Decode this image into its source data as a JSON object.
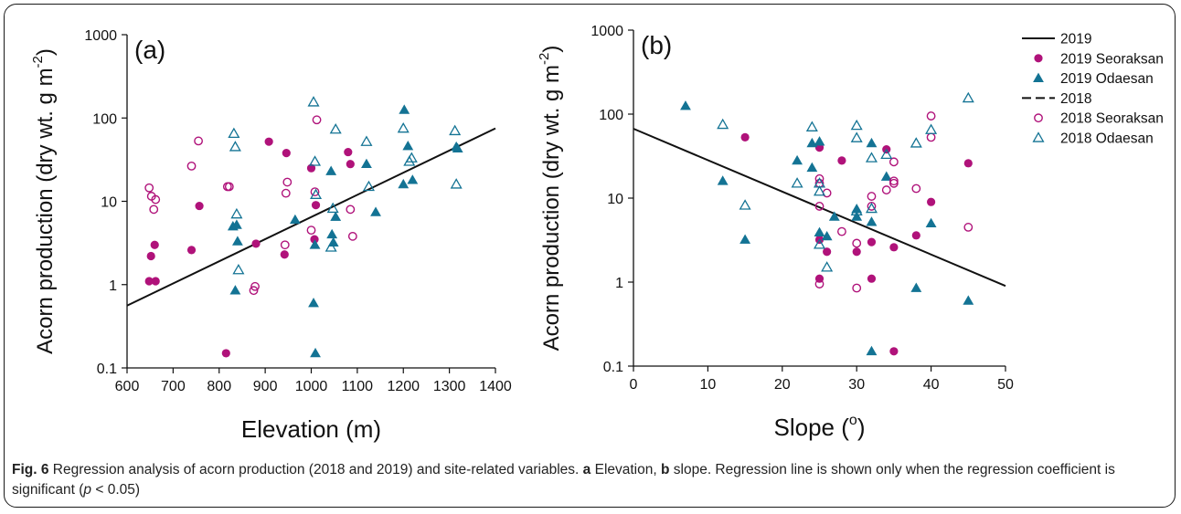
{
  "chart_data": [
    {
      "type": "scatter",
      "panel_label": "(a)",
      "xlabel": "Elevation (m)",
      "ylabel": "Acorn production (dry wt. g m",
      "ylabel_sup": "-2",
      "ylabel_end": ")",
      "xlim": [
        600,
        1400
      ],
      "ylim": [
        0.1,
        1000
      ],
      "yscale": "log",
      "xticks": [
        "600",
        "700",
        "800",
        "900",
        "1000",
        "1100",
        "1200",
        "1300",
        "1400"
      ],
      "yticks": [
        "0.1",
        "1",
        "10",
        "100",
        "1000"
      ],
      "grid": false,
      "regression_line": {
        "name": "2019",
        "x": [
          600,
          1400
        ],
        "y": [
          0.56,
          75
        ]
      },
      "series": [
        {
          "name": "2019 Seoraksan",
          "marker": "circle-filled",
          "color": "#b0127a",
          "points": [
            [
              648,
              1.1
            ],
            [
              652,
              2.2
            ],
            [
              660,
              3.0
            ],
            [
              662,
              1.1
            ],
            [
              740,
              2.6
            ],
            [
              757,
              8.8
            ],
            [
              815,
              0.15
            ],
            [
              880,
              3.1
            ],
            [
              908,
              52
            ],
            [
              942,
              2.3
            ],
            [
              946,
              38
            ],
            [
              1000,
              25
            ],
            [
              1007,
              3.5
            ],
            [
              1010,
              9
            ],
            [
              1080,
              39
            ],
            [
              1085,
              28
            ]
          ]
        },
        {
          "name": "2019 Odaesan",
          "marker": "triangle-filled",
          "color": "#137394",
          "points": [
            [
              830,
              5.0
            ],
            [
              835,
              0.85
            ],
            [
              838,
              5.2
            ],
            [
              840,
              3.3
            ],
            [
              965,
              6.0
            ],
            [
              1005,
              0.6
            ],
            [
              1008,
              3.0
            ],
            [
              1009,
              0.15
            ],
            [
              1043,
              23
            ],
            [
              1045,
              4.0
            ],
            [
              1048,
              3.2
            ],
            [
              1053,
              6.5
            ],
            [
              1120,
              28
            ],
            [
              1140,
              7.4
            ],
            [
              1200,
              16
            ],
            [
              1202,
              125
            ],
            [
              1210,
              46
            ],
            [
              1220,
              18
            ],
            [
              1315,
              45
            ],
            [
              1318,
              43
            ]
          ]
        },
        {
          "name": "2018 Seoraksan",
          "marker": "circle-open",
          "color": "#b0127a",
          "points": [
            [
              648,
              14.5
            ],
            [
              653,
              11.5
            ],
            [
              658,
              8.0
            ],
            [
              662,
              10.5
            ],
            [
              740,
              26.5
            ],
            [
              755,
              53
            ],
            [
              818,
              15
            ],
            [
              822,
              15
            ],
            [
              875,
              0.85
            ],
            [
              878,
              0.95
            ],
            [
              943,
              3.0
            ],
            [
              945,
              12.5
            ],
            [
              948,
              17
            ],
            [
              1000,
              4.5
            ],
            [
              1008,
              13
            ],
            [
              1012,
              95
            ],
            [
              1085,
              8
            ],
            [
              1090,
              3.8
            ]
          ]
        },
        {
          "name": "2018 Odaesan",
          "marker": "triangle-open",
          "color": "#137394",
          "points": [
            [
              832,
              65
            ],
            [
              835,
              45
            ],
            [
              838,
              7.0
            ],
            [
              842,
              1.5
            ],
            [
              1005,
              155
            ],
            [
              1008,
              30
            ],
            [
              1010,
              12
            ],
            [
              1043,
              2.8
            ],
            [
              1047,
              8.2
            ],
            [
              1053,
              73
            ],
            [
              1120,
              52
            ],
            [
              1125,
              15
            ],
            [
              1200,
              75
            ],
            [
              1213,
              30
            ],
            [
              1218,
              33
            ],
            [
              1312,
              70
            ],
            [
              1315,
              16
            ]
          ]
        }
      ]
    },
    {
      "type": "scatter",
      "panel_label": "(b)",
      "xlabel": "Slope (",
      "xlabel_sup": "o",
      "xlabel_end": ")",
      "ylabel": "Acorn production (dry wt. g m",
      "ylabel_sup": "-2",
      "ylabel_end": ")",
      "xlim": [
        0,
        50
      ],
      "ylim": [
        0.1,
        1000
      ],
      "yscale": "log",
      "xticks": [
        "0",
        "10",
        "20",
        "30",
        "40",
        "50"
      ],
      "yticks": [
        "0.1",
        "1",
        "10",
        "100",
        "1000"
      ],
      "grid": false,
      "legend_position": "top-right",
      "legend": [
        {
          "label": "2019",
          "kind": "solid-line"
        },
        {
          "label": "2019 Seoraksan",
          "kind": "circle-filled"
        },
        {
          "label": "2019 Odaesan",
          "kind": "triangle-filled"
        },
        {
          "label": "2018",
          "kind": "dashed-line"
        },
        {
          "label": "2018 Seoraksan",
          "kind": "circle-open"
        },
        {
          "label": "2018 Odaesan",
          "kind": "triangle-open"
        }
      ],
      "regression_line": {
        "name": "2019",
        "x": [
          0,
          50
        ],
        "y": [
          67,
          0.9
        ]
      },
      "series": [
        {
          "name": "2019 Seoraksan",
          "marker": "circle-filled",
          "color": "#b0127a",
          "points": [
            [
              15,
              53
            ],
            [
              25,
              40
            ],
            [
              25,
              3.2
            ],
            [
              25,
              1.1
            ],
            [
              26,
              2.3
            ],
            [
              28,
              28
            ],
            [
              30,
              2.3
            ],
            [
              32,
              3.0
            ],
            [
              32,
              1.1
            ],
            [
              34,
              38
            ],
            [
              35,
              2.6
            ],
            [
              35,
              0.15
            ],
            [
              38,
              3.6
            ],
            [
              40,
              9.0
            ],
            [
              45,
              26
            ]
          ]
        },
        {
          "name": "2019 Odaesan",
          "marker": "triangle-filled",
          "color": "#137394",
          "points": [
            [
              7,
              125
            ],
            [
              12,
              16
            ],
            [
              15,
              3.2
            ],
            [
              22,
              28
            ],
            [
              24,
              45
            ],
            [
              24,
              23
            ],
            [
              25,
              47
            ],
            [
              25,
              3.9
            ],
            [
              26,
              3.5
            ],
            [
              27,
              6.0
            ],
            [
              30,
              7.4
            ],
            [
              30,
              6.0
            ],
            [
              32,
              45
            ],
            [
              32,
              5.2
            ],
            [
              32,
              0.15
            ],
            [
              34,
              18
            ],
            [
              38,
              0.85
            ],
            [
              40,
              5.0
            ],
            [
              45,
              0.6
            ]
          ]
        },
        {
          "name": "2018 Seoraksan",
          "marker": "circle-open",
          "color": "#b0127a",
          "points": [
            [
              25,
              17
            ],
            [
              25,
              15
            ],
            [
              25,
              8
            ],
            [
              25,
              0.95
            ],
            [
              26,
              11.5
            ],
            [
              28,
              4
            ],
            [
              30,
              2.9
            ],
            [
              30,
              0.85
            ],
            [
              32,
              10.5
            ],
            [
              32,
              8
            ],
            [
              34,
              12.5
            ],
            [
              35,
              16
            ],
            [
              35,
              15
            ],
            [
              35,
              27
            ],
            [
              38,
              13
            ],
            [
              40,
              95
            ],
            [
              40,
              53
            ],
            [
              45,
              4.5
            ]
          ]
        },
        {
          "name": "2018 Odaesan",
          "marker": "triangle-open",
          "color": "#137394",
          "points": [
            [
              12,
              75
            ],
            [
              15,
              8.2
            ],
            [
              22,
              15
            ],
            [
              24,
              70
            ],
            [
              25,
              15
            ],
            [
              25,
              12
            ],
            [
              25,
              2.8
            ],
            [
              26,
              1.5
            ],
            [
              30,
              73
            ],
            [
              30,
              52
            ],
            [
              30,
              7
            ],
            [
              32,
              30
            ],
            [
              32,
              7.5
            ],
            [
              34,
              33
            ],
            [
              38,
              45
            ],
            [
              40,
              65
            ],
            [
              45,
              155
            ]
          ]
        }
      ]
    }
  ],
  "caption": {
    "fig_label": "Fig. 6",
    "text_1": " Regression analysis of acorn production (2018 and 2019) and site-related variables. ",
    "label_a": "a",
    "text_2": " Elevation, ",
    "label_b": "b",
    "text_3": " slope. Regression line is shown only when the regression coefficient is significant (",
    "p_symbol": "p",
    "text_4": " < 0.05)"
  }
}
